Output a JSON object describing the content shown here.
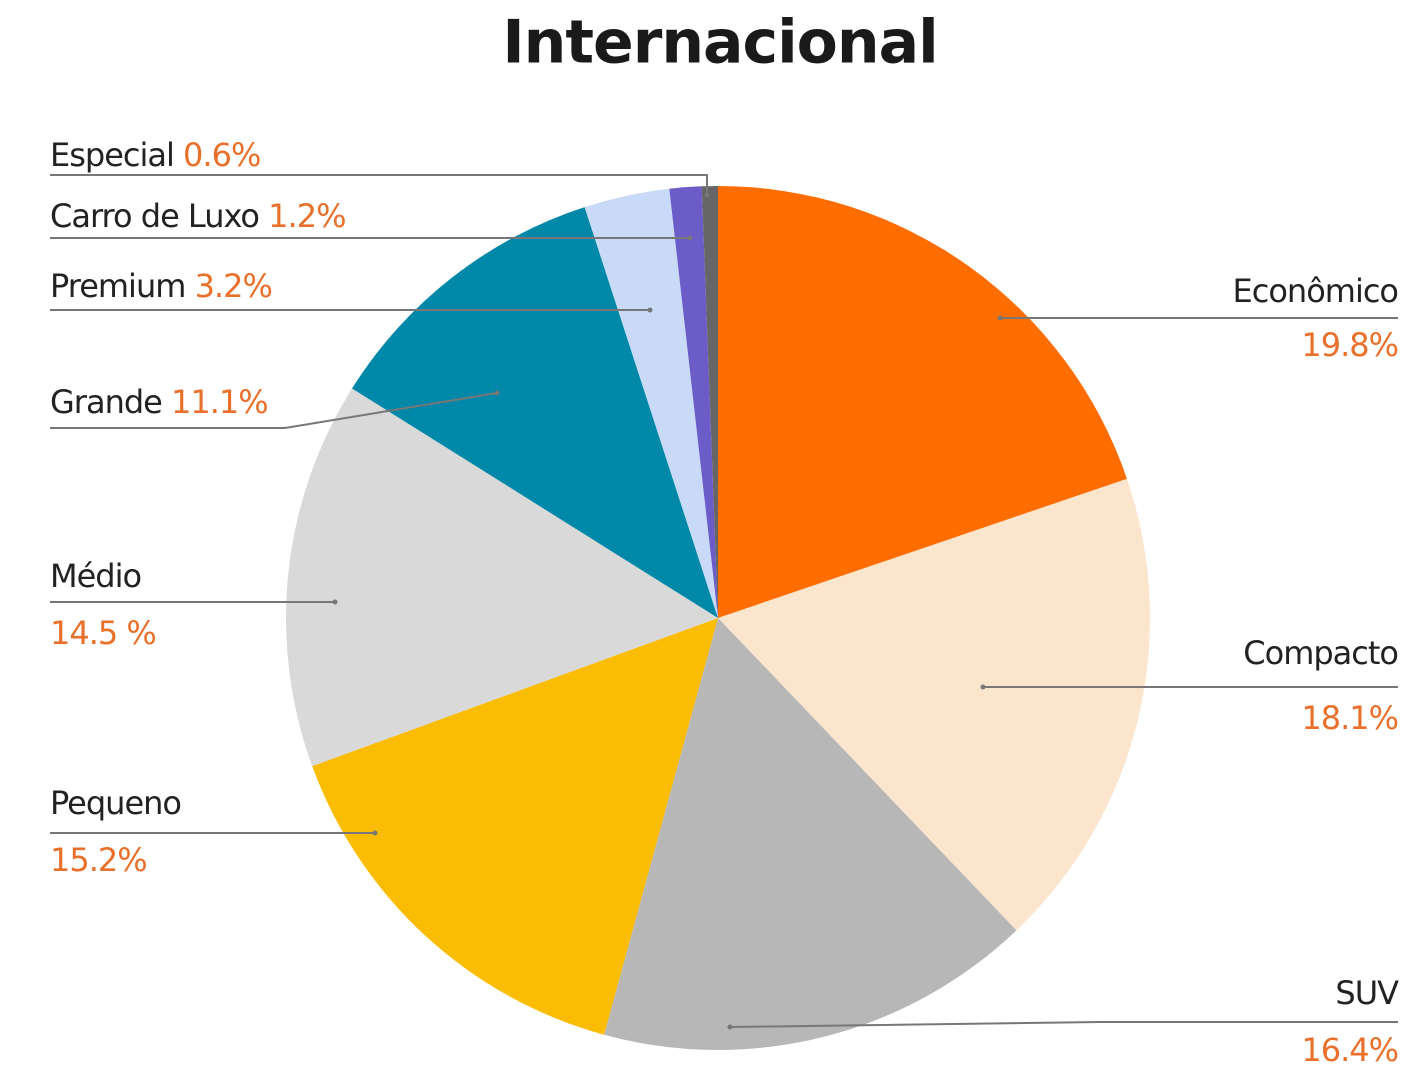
{
  "chart_data": {
    "type": "pie",
    "title": "Internacional",
    "categories": [
      "Econômico",
      "Compacto",
      "SUV",
      "Pequeno",
      "Médio",
      "Grande",
      "Premium",
      "Carro de Luxo",
      "Especial"
    ],
    "values": [
      19.8,
      18.1,
      16.4,
      15.2,
      14.5,
      11.1,
      3.2,
      1.2,
      0.6
    ],
    "value_labels": [
      "19.8%",
      "18.1%",
      "16.4%",
      "15.2%",
      "14.5 %",
      "11.1%",
      "3.2%",
      "1.2%",
      "0.6%"
    ],
    "colors": [
      "#ff6d00",
      "#fbe5cd",
      "#b7b7b7",
      "#fbbc04",
      "#d9d9d9",
      "#0088a8",
      "#c9daf8",
      "#6b5cc8",
      "#666666"
    ]
  }
}
